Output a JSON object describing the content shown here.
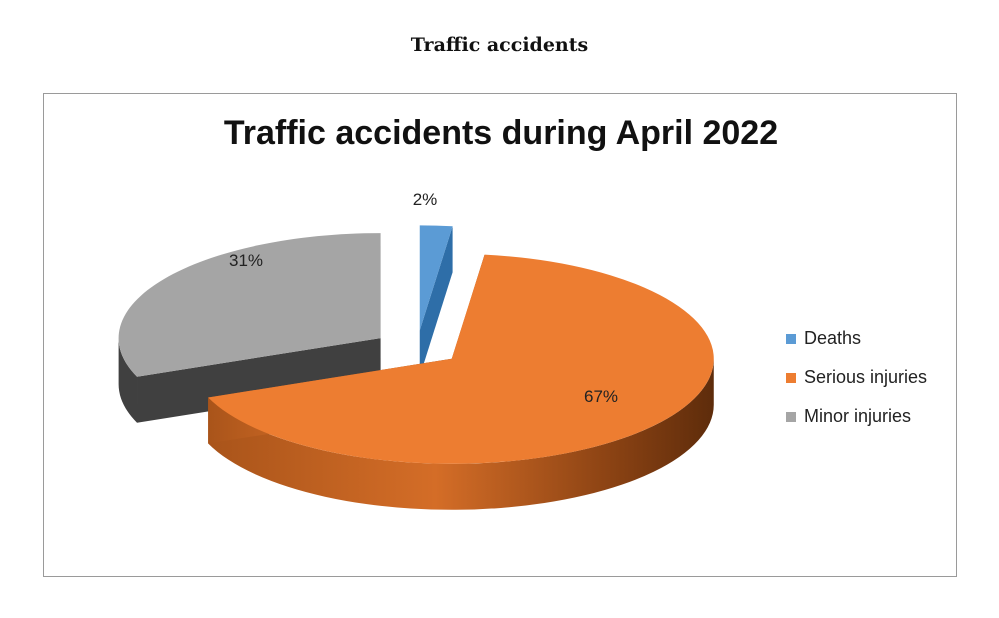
{
  "page_title": "Traffic accidents",
  "chart_data": {
    "type": "pie",
    "title": "Traffic accidents during April 2022",
    "categories": [
      "Deaths",
      "Serious injuries",
      "Minor injuries"
    ],
    "values": [
      2,
      67,
      31
    ],
    "labels": [
      "2%",
      "67%",
      "31%"
    ],
    "colors": [
      "#5b9bd5",
      "#ed7d31",
      "#a5a5a5"
    ],
    "exploded": true,
    "three_d": true,
    "legend_position": "right"
  }
}
